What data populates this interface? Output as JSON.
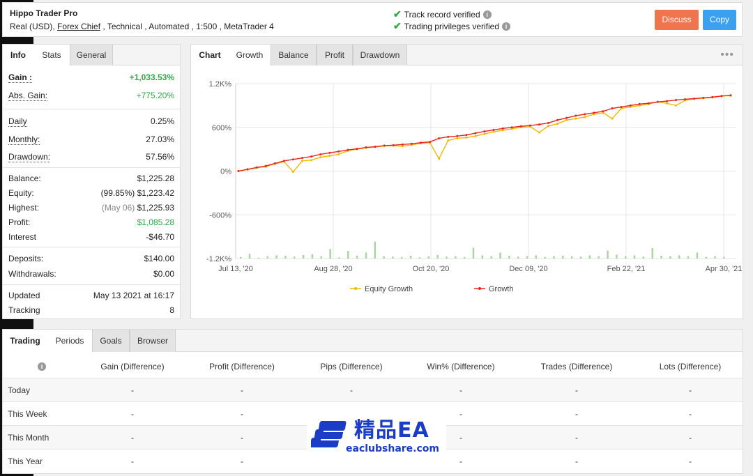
{
  "header": {
    "system_name": "Hippo Trader Pro",
    "desc_prefix": "Real (USD), ",
    "desc_link": "Forex Chief",
    "desc_suffix": " , Technical , Automated , 1:500 , MetaTrader 4",
    "verify_track": "Track record verified",
    "verify_trading": "Trading privileges verified",
    "discuss_label": "Discuss",
    "copy_label": "Copy",
    "colors": {
      "discuss": "#f0754f",
      "copy": "#3ba0f0",
      "verified": "#2eab46"
    }
  },
  "info_tabs": [
    "Info",
    "Stats",
    "General"
  ],
  "stats": {
    "gain_label": "Gain :",
    "gain": "+1,033.53%",
    "abs_gain_label": "Abs. Gain:",
    "abs_gain": "+775.20%",
    "daily_label": "Daily",
    "daily": "0.25%",
    "monthly_label": "Monthly:",
    "monthly": "27.03%",
    "drawdown_label": "Drawdown:",
    "drawdown": "57.56%",
    "balance_label": "Balance:",
    "balance": "$1,225.28",
    "equity_label": "Equity:",
    "equity_pct": "(99.85%)",
    "equity": "$1,223.42",
    "highest_label": "Highest:",
    "highest_date": "(May 06)",
    "highest": "$1,225.93",
    "profit_label": "Profit:",
    "profit": "$1,085.28",
    "interest_label": "Interest",
    "interest": "-$46.70",
    "deposits_label": "Deposits:",
    "deposits": "$140.00",
    "withdrawals_label": "Withdrawals:",
    "withdrawals": "$0.00",
    "updated_label": "Updated",
    "updated": "May 13 2021 at 16:17",
    "tracking_label": "Tracking",
    "tracking": "8"
  },
  "chart_tabs": [
    "Chart",
    "Growth",
    "Balance",
    "Profit",
    "Drawdown"
  ],
  "chart_menu": "•••",
  "chart_data": {
    "type": "line",
    "x_ticks": [
      "Jul 13, '20",
      "Aug 28, '20",
      "Oct 20, '20",
      "Dec 09, '20",
      "Feb 22, '21",
      "Apr 30, '21"
    ],
    "y_ticks": [
      "1.2K%",
      "600%",
      "0%",
      "-600%",
      "-1.2K%"
    ],
    "ylim": [
      -1200,
      1200
    ],
    "grid": true,
    "legend_position": "bottom",
    "series": [
      {
        "name": "Equity Growth",
        "color": "#f5b800",
        "values": [
          0,
          20,
          45,
          60,
          100,
          130,
          -10,
          140,
          150,
          190,
          210,
          230,
          280,
          300,
          320,
          330,
          345,
          350,
          340,
          360,
          380,
          390,
          170,
          420,
          450,
          460,
          480,
          510,
          540,
          560,
          580,
          600,
          610,
          530,
          620,
          650,
          700,
          720,
          740,
          780,
          800,
          720,
          860,
          880,
          900,
          920,
          950,
          930,
          900,
          970,
          990,
          1000,
          1010,
          1030,
          1035
        ]
      },
      {
        "name": "Growth",
        "color": "#e8251e",
        "values": [
          0,
          25,
          50,
          70,
          105,
          140,
          160,
          180,
          200,
          230,
          250,
          270,
          290,
          305,
          325,
          335,
          350,
          355,
          365,
          375,
          390,
          400,
          450,
          470,
          480,
          495,
          520,
          545,
          565,
          585,
          600,
          615,
          625,
          640,
          660,
          700,
          730,
          760,
          780,
          800,
          820,
          860,
          880,
          900,
          920,
          930,
          950,
          960,
          975,
          985,
          995,
          1005,
          1015,
          1030,
          1040
        ]
      }
    ],
    "volume_bars": [
      40,
      120,
      20,
      60,
      80,
      70,
      50,
      90,
      110,
      60,
      240,
      30,
      190,
      70,
      150,
      420,
      60,
      50,
      40,
      70,
      30,
      60,
      90,
      50,
      60,
      40,
      270,
      80,
      60,
      150,
      70,
      50,
      60,
      80,
      40,
      60,
      70,
      60,
      50,
      80,
      60,
      200,
      100,
      60,
      80,
      50,
      260,
      70,
      60,
      80,
      60,
      150,
      40,
      60,
      40
    ]
  },
  "trading_tabs": [
    "Trading",
    "Periods",
    "Goals",
    "Browser"
  ],
  "periods_table": {
    "columns": [
      "Gain (Difference)",
      "Profit (Difference)",
      "Pips (Difference)",
      "Win% (Difference)",
      "Trades (Difference)",
      "Lots (Difference)"
    ],
    "rows": [
      {
        "label": "Today",
        "values": [
          "-",
          "-",
          "-",
          "-",
          "-",
          "-"
        ]
      },
      {
        "label": "This Week",
        "values": [
          "-",
          "-",
          "-",
          "-",
          "-",
          "-"
        ]
      },
      {
        "label": "This Month",
        "values": [
          "-",
          "-",
          "-",
          "-",
          "-",
          "-"
        ]
      },
      {
        "label": "This Year",
        "values": [
          "-",
          "-",
          "-",
          "-",
          "-",
          "-"
        ]
      }
    ]
  },
  "watermark": {
    "title": "精品EA",
    "url": "eaclubshare.com"
  }
}
